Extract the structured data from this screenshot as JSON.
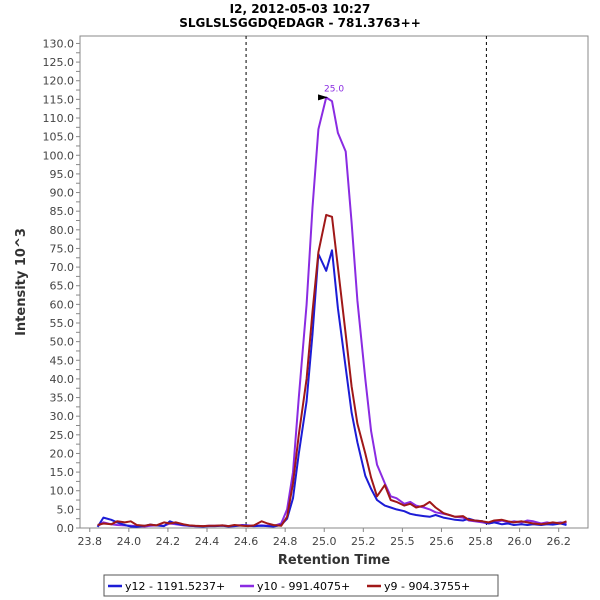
{
  "chart_data": {
    "type": "line",
    "title": "I2, 2012-05-03 10:27",
    "subtitle": "SLGLSLSGGDQEDAGR - 781.3763++",
    "xlabel": "Retention Time",
    "ylabel": "Intensity 10^3",
    "xlim": [
      23.75,
      26.35
    ],
    "ylim": [
      0,
      132
    ],
    "x_ticks": [
      "23.8",
      "24.0",
      "24.2",
      "24.4",
      "24.6",
      "24.8",
      "25.0",
      "25.2",
      "25.5",
      "25.6",
      "25.8",
      "26.0",
      "26.2"
    ],
    "y_ticks": [
      "0.0",
      "2.5",
      "5.0",
      "7.5",
      "10.0",
      "12.5",
      "15.0",
      "17.5",
      "20.0",
      "22.5",
      "25.0",
      "27.5",
      "30.0",
      "32.5",
      "35.0",
      "37.5",
      "40.0",
      "42.5",
      "45.0",
      "47.5",
      "50.0",
      "52.5",
      "55.0",
      "57.5",
      "60.0",
      "62.5",
      "65.0",
      "67.5",
      "70.0",
      "72.5",
      "75.0",
      "77.5",
      "80.0",
      "82.5",
      "85.0",
      "87.5",
      "90.0",
      "92.5",
      "95.0",
      "97.5",
      "100.0",
      "102.5",
      "105.0",
      "107.5",
      "110.0",
      "112.5",
      "115.0",
      "117.5",
      "120.0",
      "122.5",
      "125.0",
      "127.5",
      "130.0"
    ],
    "vlines": [
      24.6,
      25.83
    ],
    "peak_annotation": {
      "label": "25.0",
      "x": 25.04,
      "y": 115.0,
      "color": "#8a2be2"
    },
    "grid": false,
    "legend_position": "bottom",
    "series": [
      {
        "name": "y12 - 1191.5237+",
        "color": "#1c1cd6",
        "x": [
          23.84,
          23.87,
          23.91,
          23.94,
          23.98,
          24.01,
          24.04,
          24.08,
          24.11,
          24.14,
          24.18,
          24.21,
          24.24,
          24.28,
          24.31,
          24.34,
          24.38,
          24.41,
          24.44,
          24.48,
          24.51,
          24.54,
          24.58,
          24.61,
          24.64,
          24.68,
          24.71,
          24.74,
          24.78,
          24.81,
          24.84,
          24.87,
          24.91,
          24.94,
          24.97,
          25.01,
          25.04,
          25.07,
          25.11,
          25.14,
          25.17,
          25.21,
          25.24,
          25.27,
          25.31,
          25.34,
          25.37,
          25.41,
          25.44,
          25.47,
          25.51,
          25.54,
          25.57,
          25.61,
          25.64,
          25.67,
          25.71,
          25.74,
          25.77,
          25.81,
          25.84,
          25.87,
          25.91,
          25.94,
          25.97,
          26.01,
          26.04,
          26.07,
          26.11,
          26.14,
          26.17,
          26.21,
          26.24
        ],
        "values": [
          0.3,
          2.8,
          2.2,
          1.5,
          0.8,
          0.4,
          0.3,
          0.6,
          0.9,
          0.7,
          0.5,
          1.8,
          1.2,
          0.8,
          0.6,
          0.5,
          0.4,
          0.5,
          0.5,
          0.6,
          0.4,
          0.5,
          0.7,
          0.6,
          0.5,
          0.6,
          0.5,
          0.4,
          0.8,
          2.5,
          8.0,
          20.0,
          34.0,
          52.0,
          73.5,
          69.0,
          74.5,
          59.0,
          43.0,
          31.0,
          23.0,
          14.0,
          10.5,
          7.5,
          6.0,
          5.5,
          5.0,
          4.5,
          3.8,
          3.5,
          3.2,
          3.0,
          3.5,
          2.8,
          2.5,
          2.2,
          2.0,
          2.5,
          2.0,
          1.8,
          1.2,
          1.5,
          1.0,
          1.2,
          0.8,
          1.0,
          0.8,
          1.0,
          0.8,
          1.0,
          0.9,
          1.2,
          0.8
        ]
      },
      {
        "name": "y10 - 991.4075+",
        "color": "#8a2be2",
        "x": [
          23.84,
          23.87,
          23.91,
          23.94,
          23.98,
          24.01,
          24.04,
          24.08,
          24.11,
          24.14,
          24.18,
          24.21,
          24.24,
          24.28,
          24.31,
          24.34,
          24.38,
          24.41,
          24.44,
          24.48,
          24.51,
          24.54,
          24.58,
          24.61,
          24.64,
          24.68,
          24.71,
          24.74,
          24.78,
          24.81,
          24.84,
          24.87,
          24.91,
          24.94,
          24.97,
          25.01,
          25.04,
          25.07,
          25.11,
          25.14,
          25.17,
          25.21,
          25.24,
          25.27,
          25.31,
          25.34,
          25.37,
          25.41,
          25.44,
          25.47,
          25.51,
          25.54,
          25.57,
          25.61,
          25.64,
          25.67,
          25.71,
          25.74,
          25.77,
          25.81,
          25.84,
          25.87,
          25.91,
          25.94,
          25.97,
          26.01,
          26.04,
          26.07,
          26.11,
          26.14,
          26.17,
          26.21,
          26.24
        ],
        "values": [
          0.5,
          1.5,
          1.0,
          0.8,
          0.7,
          0.6,
          0.5,
          0.4,
          0.6,
          0.7,
          0.6,
          1.2,
          1.0,
          0.7,
          0.6,
          0.5,
          0.5,
          0.6,
          0.6,
          0.7,
          0.5,
          0.6,
          0.8,
          0.7,
          0.6,
          0.7,
          0.6,
          0.5,
          1.2,
          5.0,
          15.0,
          35.0,
          60.0,
          86.0,
          107.0,
          115.5,
          114.5,
          106.0,
          101.0,
          82.0,
          61.0,
          40.0,
          26.0,
          17.0,
          12.0,
          8.5,
          8.0,
          6.5,
          7.0,
          6.0,
          5.5,
          5.0,
          4.2,
          3.8,
          3.5,
          3.0,
          2.8,
          2.0,
          1.8,
          1.5,
          1.2,
          1.5,
          2.0,
          1.5,
          1.8,
          1.5,
          2.0,
          1.8,
          1.2,
          1.5,
          1.2,
          1.5,
          1.2
        ]
      },
      {
        "name": "y9 - 904.3755+",
        "color": "#a01818",
        "x": [
          23.84,
          23.87,
          23.91,
          23.94,
          23.98,
          24.01,
          24.04,
          24.08,
          24.11,
          24.14,
          24.18,
          24.21,
          24.24,
          24.28,
          24.31,
          24.34,
          24.38,
          24.41,
          24.44,
          24.48,
          24.51,
          24.54,
          24.58,
          24.61,
          24.64,
          24.68,
          24.71,
          24.74,
          24.78,
          24.81,
          24.84,
          24.87,
          24.91,
          24.94,
          24.97,
          25.01,
          25.04,
          25.07,
          25.11,
          25.14,
          25.17,
          25.21,
          25.24,
          25.27,
          25.31,
          25.34,
          25.37,
          25.41,
          25.44,
          25.47,
          25.51,
          25.54,
          25.57,
          25.61,
          25.64,
          25.67,
          25.71,
          25.74,
          25.77,
          25.81,
          25.84,
          25.87,
          25.91,
          25.94,
          25.97,
          26.01,
          26.04,
          26.07,
          26.11,
          26.14,
          26.17,
          26.21,
          26.24
        ],
        "values": [
          0.8,
          1.2,
          1.0,
          1.8,
          1.5,
          1.8,
          0.8,
          0.6,
          0.9,
          0.7,
          1.5,
          1.2,
          1.5,
          1.0,
          0.7,
          0.6,
          0.5,
          0.6,
          0.6,
          0.7,
          0.5,
          0.8,
          0.6,
          0.5,
          0.7,
          1.8,
          1.2,
          0.8,
          0.6,
          3.0,
          12.0,
          25.0,
          40.0,
          58.0,
          74.0,
          84.0,
          83.5,
          70.0,
          52.0,
          38.0,
          28.0,
          20.0,
          13.5,
          8.5,
          11.5,
          7.5,
          7.0,
          6.0,
          6.5,
          5.5,
          6.0,
          7.0,
          5.5,
          4.0,
          3.5,
          3.0,
          3.2,
          2.2,
          2.0,
          1.8,
          1.5,
          2.0,
          2.2,
          1.8,
          1.5,
          1.8,
          1.5,
          1.2,
          1.0,
          1.2,
          1.5,
          1.2,
          1.8
        ]
      }
    ]
  }
}
